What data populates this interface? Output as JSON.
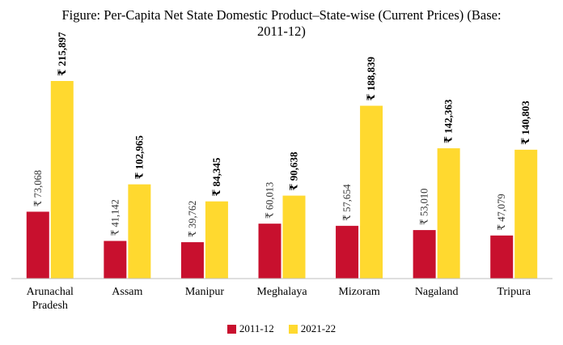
{
  "chart_data": {
    "type": "bar",
    "title_line1": "Figure: Per-Capita Net State Domestic Product–State-wise (Current Prices) (Base:",
    "title_line2": "2011-12)",
    "categories": [
      [
        "Arunachal",
        "Pradesh"
      ],
      [
        "Assam"
      ],
      [
        "Manipur"
      ],
      [
        "Meghalaya"
      ],
      [
        "Mizoram"
      ],
      [
        "Nagaland"
      ],
      [
        "Tripura"
      ]
    ],
    "series": [
      {
        "name": "2011-12",
        "color": "#c8102e",
        "values": [
          73068,
          41142,
          39762,
          60013,
          57654,
          53010,
          47079
        ],
        "labels": [
          "₹ 73,068",
          "₹ 41,142",
          "₹ 39,762",
          "₹ 60,013",
          "₹ 57,654",
          "₹ 53,010",
          "₹ 47,079"
        ]
      },
      {
        "name": "2021-22",
        "color": "#ffd92f",
        "values": [
          215897,
          102965,
          84345,
          90638,
          188839,
          142363,
          140803
        ],
        "labels": [
          "₹ 215,897",
          "₹ 102,965",
          "₹ 84,345",
          "₹ 90,638",
          "₹ 188,839",
          "₹ 142,363",
          "₹ 140,803"
        ]
      }
    ],
    "ylim": [
      0,
      215897
    ],
    "grid": false,
    "legend_position": "bottom"
  }
}
